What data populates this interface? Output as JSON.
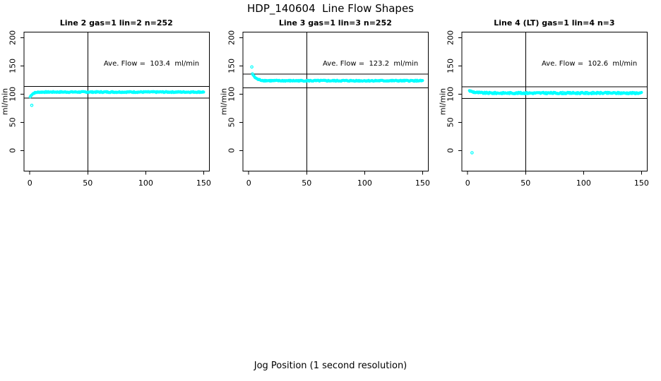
{
  "title": "HDP_140604  Line Flow Shapes",
  "xlabel": "Jog Position (1 second resolution)",
  "point_color": "#00ffff",
  "axis_color": "#000000",
  "chart_data": [
    {
      "type": "scatter",
      "title": "Line 2 gas=1 lin=2 n=252",
      "ylabel": "ml/min",
      "ave_flow": 103.4,
      "ave_flow_label": "Ave. Flow =  103.4  ml/min",
      "n": 252,
      "x_ticks": [
        0,
        50,
        100,
        150
      ],
      "y_ticks": [
        0,
        50,
        100,
        150,
        200
      ],
      "xlim": [
        -5,
        155
      ],
      "ylim": [
        -36.5,
        209.8
      ],
      "ref_line_upper": 113.7,
      "ref_line_lower": 93.1,
      "vline_x": 50,
      "outlier_points": [
        [
          1.7,
          80
        ]
      ],
      "band": {
        "x_start": 0.3,
        "x_end": 150,
        "y_start": 95,
        "y_flat": 103.6,
        "tau": 2.2,
        "jitter": 0.9,
        "rendered_points": 250
      }
    },
    {
      "type": "scatter",
      "title": "Line 3 gas=1 lin=3 n=252",
      "ylabel": "ml/min",
      "ave_flow": 123.2,
      "ave_flow_label": "Ave. Flow =  123.2  ml/min",
      "n": 252,
      "x_ticks": [
        0,
        50,
        100,
        150
      ],
      "y_ticks": [
        0,
        50,
        100,
        150,
        200
      ],
      "xlim": [
        -5,
        155
      ],
      "ylim": [
        -36.5,
        209.8
      ],
      "ref_line_upper": 135.5,
      "ref_line_lower": 110.9,
      "vline_x": 50,
      "outlier_points": [
        [
          2.7,
          148
        ]
      ],
      "band": {
        "x_start": 3.2,
        "x_end": 150,
        "y_start": 136,
        "y_flat": 123.6,
        "tau": 3.0,
        "jitter": 1.0,
        "rendered_points": 250
      }
    },
    {
      "type": "scatter",
      "title": "Line 4 (LT) gas=1 lin=4 n=3",
      "ylabel": "ml/min",
      "ave_flow": 102.6,
      "ave_flow_label": "Ave. Flow =  102.6  ml/min",
      "n": 3,
      "x_ticks": [
        0,
        50,
        100,
        150
      ],
      "y_ticks": [
        0,
        50,
        100,
        150,
        200
      ],
      "xlim": [
        -5,
        155
      ],
      "ylim": [
        -36.5,
        209.8
      ],
      "ref_line_upper": 112.9,
      "ref_line_lower": 92.3,
      "vline_x": 50,
      "outlier_points": [
        [
          3.8,
          -4
        ]
      ],
      "band": {
        "x_start": 1.5,
        "x_end": 150,
        "y_start": 106,
        "y_flat": 101.8,
        "tau": 4.5,
        "jitter": 1.3,
        "rendered_points": 250
      }
    }
  ]
}
